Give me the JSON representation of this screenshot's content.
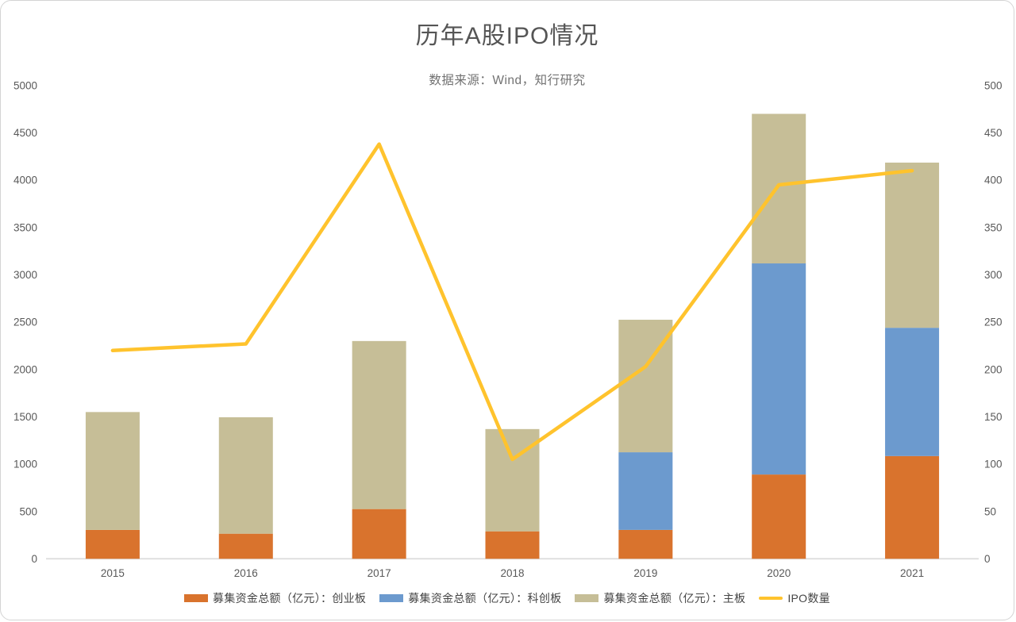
{
  "chart_data": {
    "type": "bar",
    "subtype": "stacked-bars-with-line-overlay",
    "title": "历年A股IPO情况",
    "subtitle": "数据来源：Wind，知行研究",
    "categories": [
      "2015",
      "2016",
      "2017",
      "2018",
      "2019",
      "2020",
      "2021"
    ],
    "bar_series": [
      {
        "name": "募集资金总额（亿元）：创业板",
        "color": "#D9732D",
        "values": [
          305,
          265,
          525,
          290,
          305,
          890,
          1085
        ]
      },
      {
        "name": "募集资金总额（亿元）：科创板",
        "color": "#6C9ACE",
        "values": [
          0,
          0,
          0,
          0,
          820,
          2230,
          1355
        ]
      },
      {
        "name": "募集资金总额（亿元）：主板",
        "color": "#C6BE97",
        "values": [
          1245,
          1230,
          1775,
          1080,
          1400,
          1580,
          1745
        ]
      }
    ],
    "line_series": {
      "name": "IPO数量",
      "color": "#FFC32D",
      "axis": "right",
      "values": [
        220,
        227,
        438,
        105,
        203,
        395,
        410
      ]
    },
    "left_axis": {
      "min": 0,
      "max": 5000,
      "step": 500
    },
    "right_axis": {
      "min": 0,
      "max": 500,
      "step": 50
    },
    "grid": false,
    "legend_position": "bottom",
    "colors": {
      "axis_line": "#D9D9D9",
      "tick_label": "#595959",
      "title": "#555555",
      "subtitle": "#727272",
      "legend_text": "#454545"
    }
  }
}
